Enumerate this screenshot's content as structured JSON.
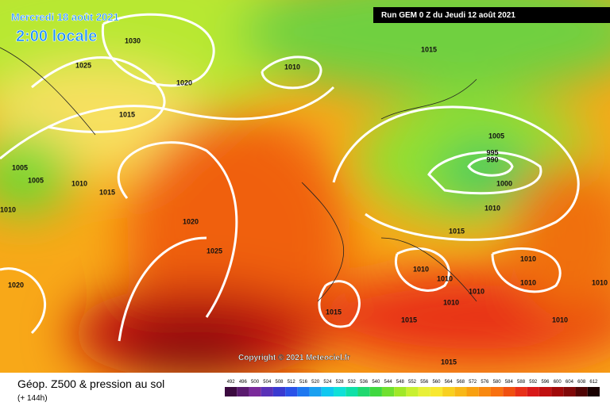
{
  "header": {
    "date": "Mercredi 18 août 2021",
    "time": "2:00 locale",
    "run": "Run GEM 0 Z du Jeudi 12 août 2021"
  },
  "copyright": "Copyright © 2021 Meteociel.fr",
  "footer": {
    "title": "Géop. Z500 & pression au sol",
    "lead": "(+ 144h)"
  },
  "isobar_labels": [
    1030,
    1025,
    1020,
    1015,
    1010,
    1015,
    1005,
    1005,
    1010,
    1015,
    1010,
    1020,
    1025,
    1020,
    1005,
    995,
    990,
    1000,
    1010,
    1015,
    1010,
    1010,
    1010,
    1010,
    1010,
    1010,
    1010,
    1015,
    1015,
    1010,
    1015
  ],
  "scale": {
    "levels": [
      492,
      496,
      500,
      504,
      508,
      512,
      516,
      520,
      524,
      528,
      532,
      536,
      540,
      544,
      548,
      552,
      556,
      560,
      564,
      568,
      572,
      576,
      580,
      584,
      588,
      592,
      596,
      600,
      604,
      608,
      612
    ],
    "colors": [
      "#3b0a3f",
      "#5a1a6e",
      "#7a2a9a",
      "#5a32b8",
      "#3a3ad0",
      "#2a52e8",
      "#1e78f0",
      "#1aa0f0",
      "#10c8f0",
      "#10e0d8",
      "#10e0a8",
      "#20d870",
      "#40d840",
      "#70e030",
      "#a0e828",
      "#c8f030",
      "#e8f038",
      "#f8e830",
      "#f8d020",
      "#f8b818",
      "#f8a010",
      "#f88810",
      "#f87010",
      "#f05010",
      "#e83018",
      "#d81818",
      "#c01010",
      "#a00808",
      "#800808",
      "#500404",
      "#180000"
    ]
  }
}
